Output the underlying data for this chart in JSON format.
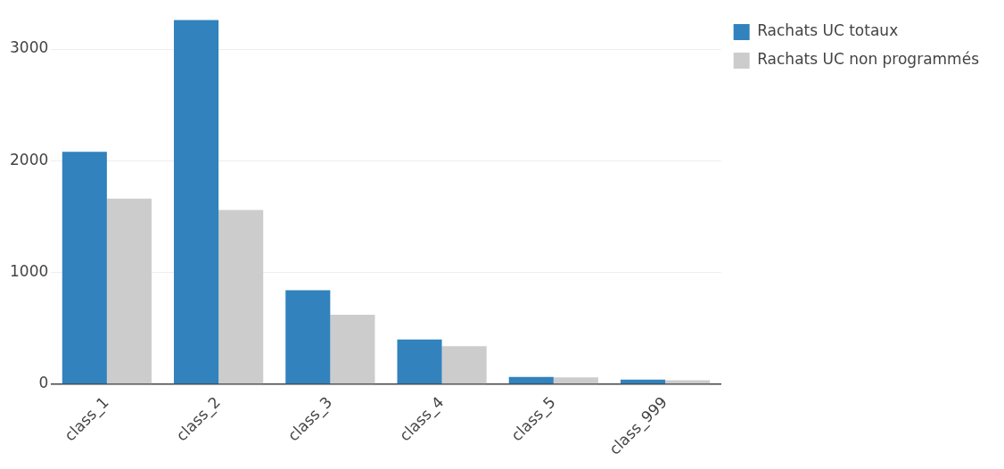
{
  "chart_data": {
    "type": "bar",
    "categories": [
      "class_1",
      "class_2",
      "class_3",
      "class_4",
      "class_5",
      "class_999"
    ],
    "series": [
      {
        "name": "Rachats UC totaux",
        "color": "#3182bd",
        "values": [
          2080,
          3260,
          840,
          400,
          65,
          40
        ]
      },
      {
        "name": "Rachats UC non programmés",
        "color": "#cccccc",
        "values": [
          1660,
          1560,
          620,
          340,
          60,
          35
        ]
      }
    ],
    "ylim": [
      0,
      3270
    ],
    "yticks": [
      0,
      1000,
      2000,
      3000
    ],
    "grid": "y",
    "legend": "top right"
  }
}
